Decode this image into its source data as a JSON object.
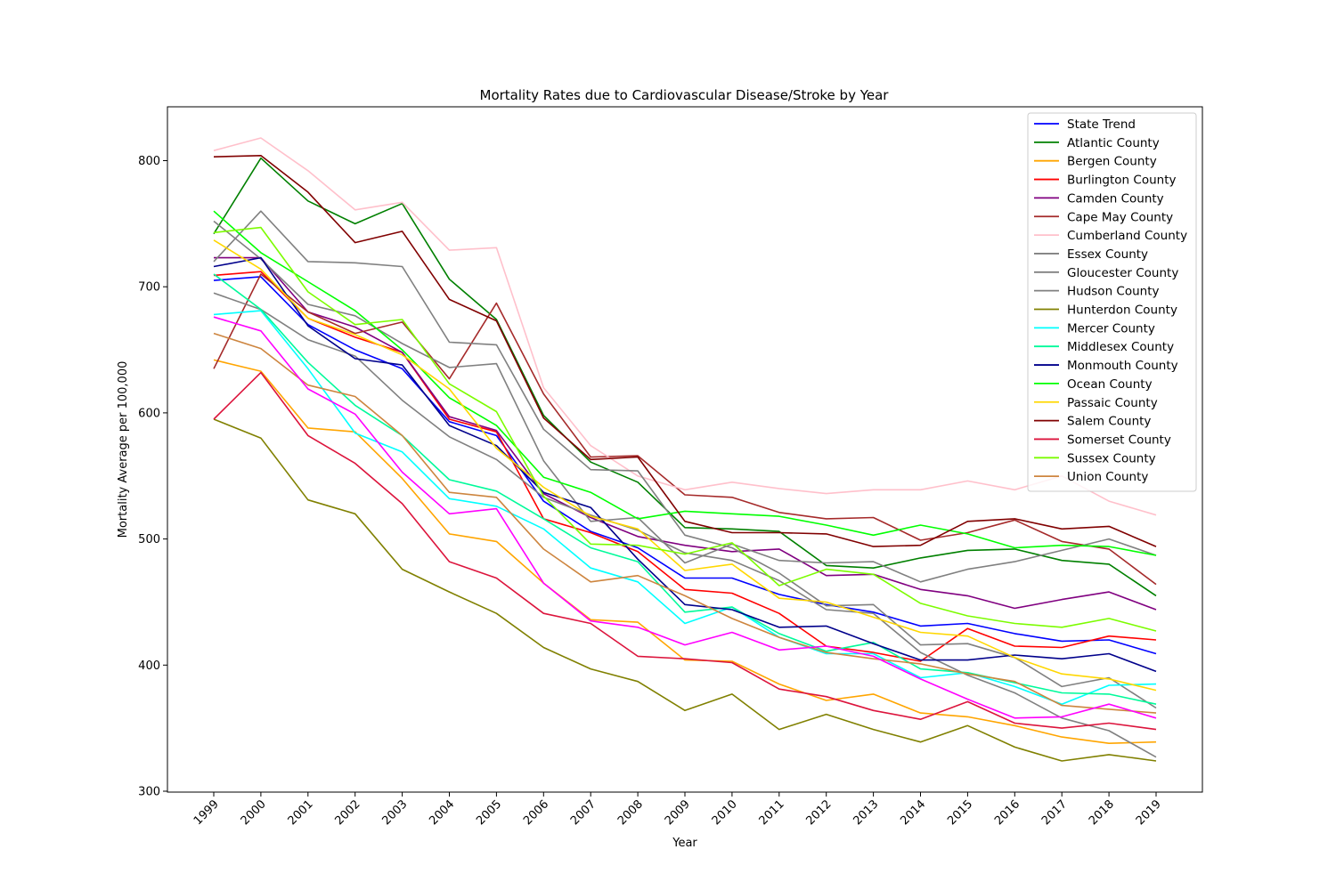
{
  "chart_data": {
    "type": "line",
    "title": "Mortality Rates due to Cardiovascular Disease/Stroke by Year",
    "xlabel": "Year",
    "ylabel": "Mortality Average per 100,000",
    "ylim": [
      300,
      840
    ],
    "yticks": [
      300,
      400,
      500,
      600,
      700,
      800
    ],
    "legend_position": "upper-right",
    "grid": false,
    "x": [
      "1999",
      "2000",
      "2001",
      "2002",
      "2003",
      "2004",
      "2005",
      "2006",
      "2007",
      "2008",
      "2009",
      "2010",
      "2011",
      "2012",
      "2013",
      "2014",
      "2015",
      "2016",
      "2017",
      "2018",
      "2019"
    ],
    "series": [
      {
        "name": "State Trend",
        "color": "#0000ff",
        "values": [
          705,
          708,
          670,
          650,
          635,
          593,
          582,
          530,
          506,
          493,
          469,
          469,
          456,
          448,
          442,
          431,
          433,
          425,
          419,
          420,
          409
        ]
      },
      {
        "name": "Atlantic County",
        "color": "#008000",
        "values": [
          742,
          802,
          768,
          750,
          766,
          706,
          674,
          598,
          561,
          545,
          509,
          508,
          506,
          479,
          477,
          485,
          491,
          492,
          483,
          480,
          455
        ]
      },
      {
        "name": "Bergen County",
        "color": "#ffa500",
        "values": [
          642,
          633,
          588,
          585,
          548,
          504,
          498,
          465,
          436,
          434,
          404,
          403,
          385,
          372,
          377,
          362,
          359,
          352,
          343,
          338,
          339
        ]
      },
      {
        "name": "Burlington County",
        "color": "#ff0000",
        "values": [
          709,
          712,
          675,
          660,
          648,
          595,
          585,
          516,
          505,
          490,
          460,
          457,
          441,
          415,
          410,
          403,
          429,
          415,
          414,
          423,
          420
        ]
      },
      {
        "name": "Camden County",
        "color": "#800080",
        "values": [
          723,
          723,
          680,
          668,
          648,
          597,
          586,
          536,
          517,
          502,
          495,
          490,
          492,
          471,
          472,
          460,
          455,
          445,
          452,
          458,
          444
        ]
      },
      {
        "name": "Cape May County",
        "color": "#a52a2a",
        "values": [
          635,
          710,
          680,
          663,
          672,
          627,
          687,
          615,
          565,
          566,
          535,
          533,
          521,
          516,
          517,
          499,
          505,
          515,
          498,
          492,
          464
        ]
      },
      {
        "name": "Cumberland County",
        "color": "#ffc0cb",
        "values": [
          808,
          818,
          792,
          761,
          767,
          729,
          731,
          620,
          574,
          550,
          539,
          545,
          540,
          536,
          539,
          539,
          546,
          539,
          550,
          530,
          519
        ]
      },
      {
        "name": "Essex County",
        "color": "#808080",
        "values": [
          720,
          760,
          720,
          719,
          716,
          656,
          654,
          587,
          555,
          554,
          503,
          493,
          473,
          447,
          448,
          416,
          417,
          406,
          383,
          390,
          366
        ]
      },
      {
        "name": "Gloucester County",
        "color": "#808080",
        "values": [
          752,
          722,
          686,
          677,
          655,
          636,
          639,
          562,
          514,
          517,
          481,
          496,
          483,
          481,
          482,
          466,
          476,
          482,
          491,
          500,
          487
        ]
      },
      {
        "name": "Hudson County",
        "color": "#808080",
        "values": [
          695,
          682,
          658,
          645,
          610,
          581,
          563,
          533,
          519,
          507,
          489,
          483,
          467,
          444,
          441,
          410,
          392,
          378,
          358,
          348,
          327
        ]
      },
      {
        "name": "Hunterdon County",
        "color": "#808000",
        "values": [
          595,
          580,
          531,
          520,
          476,
          458,
          441,
          414,
          397,
          387,
          364,
          377,
          349,
          361,
          349,
          339,
          352,
          335,
          324,
          329,
          324
        ]
      },
      {
        "name": "Mercer County",
        "color": "#00ffff",
        "values": [
          678,
          681,
          635,
          584,
          569,
          532,
          526,
          508,
          477,
          466,
          433,
          446,
          422,
          409,
          409,
          390,
          394,
          383,
          369,
          384,
          385
        ]
      },
      {
        "name": "Middlesex County",
        "color": "#00fa9a",
        "values": [
          710,
          682,
          640,
          606,
          582,
          547,
          538,
          516,
          493,
          482,
          442,
          446,
          425,
          411,
          418,
          397,
          394,
          386,
          378,
          377,
          369
        ]
      },
      {
        "name": "Monmouth County",
        "color": "#00008b",
        "values": [
          716,
          723,
          669,
          643,
          638,
          590,
          574,
          537,
          525,
          484,
          448,
          444,
          430,
          431,
          417,
          404,
          404,
          408,
          405,
          409,
          395
        ]
      },
      {
        "name": "Ocean County",
        "color": "#00ff00",
        "values": [
          760,
          727,
          704,
          681,
          650,
          612,
          590,
          549,
          537,
          516,
          522,
          520,
          518,
          511,
          503,
          511,
          504,
          493,
          495,
          494,
          487
        ]
      },
      {
        "name": "Passaic County",
        "color": "#ffd700",
        "values": [
          737,
          714,
          675,
          662,
          646,
          619,
          572,
          541,
          518,
          508,
          475,
          480,
          453,
          450,
          438,
          426,
          423,
          406,
          393,
          389,
          380
        ]
      },
      {
        "name": "Salem County",
        "color": "#800000",
        "values": [
          803,
          804,
          775,
          735,
          744,
          690,
          673,
          596,
          563,
          565,
          514,
          505,
          505,
          504,
          494,
          495,
          514,
          516,
          508,
          510,
          494
        ]
      },
      {
        "name": "Somerset County",
        "color": "#dc143c",
        "values": [
          595,
          632,
          582,
          560,
          528,
          482,
          469,
          441,
          433,
          407,
          405,
          402,
          381,
          375,
          364,
          357,
          371,
          354,
          350,
          354,
          349
        ]
      },
      {
        "name": "Sussex County",
        "color": "#7cfc00",
        "values": [
          743,
          747,
          696,
          670,
          674,
          623,
          601,
          534,
          496,
          495,
          488,
          497,
          463,
          476,
          472,
          449,
          439,
          433,
          430,
          437,
          427
        ]
      },
      {
        "name": "Union County",
        "color": "#cd853f",
        "values": [
          663,
          651,
          622,
          613,
          582,
          537,
          533,
          492,
          466,
          471,
          455,
          437,
          422,
          410,
          405,
          401,
          393,
          387,
          368,
          365,
          362
        ]
      },
      {
        "name": "",
        "color": "#ff00ff",
        "values": [
          676,
          665,
          619,
          599,
          553,
          520,
          524,
          465,
          435,
          430,
          416,
          426,
          412,
          415,
          407,
          389,
          373,
          358,
          359,
          369,
          358
        ]
      }
    ]
  }
}
